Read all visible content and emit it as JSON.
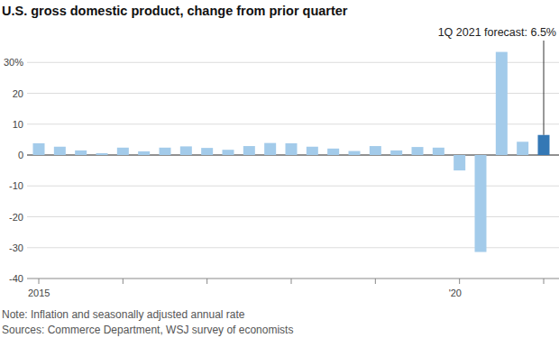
{
  "chart_data": {
    "type": "bar",
    "title": "U.S. gross domestic product, change from prior quarter",
    "annotation": "1Q 2021 forecast: 6.5%",
    "notes": [
      "Note: Inflation and seasonally adjusted annual rate",
      "Sources: Commerce Department, WSJ survey of economists"
    ],
    "categories": [
      "2015",
      null,
      null,
      null,
      null,
      null,
      null,
      null,
      null,
      null,
      null,
      null,
      null,
      null,
      null,
      null,
      null,
      null,
      null,
      null,
      "'20",
      null,
      null,
      null,
      null
    ],
    "values": [
      3.8,
      2.7,
      1.5,
      0.6,
      2.4,
      1.2,
      2.4,
      2.8,
      2.3,
      1.7,
      2.9,
      3.9,
      3.8,
      2.7,
      2.1,
      1.3,
      2.9,
      1.5,
      2.6,
      2.4,
      -5.0,
      -31.4,
      33.4,
      4.3,
      6.5
    ],
    "colors": [
      "#a3cbea",
      "#a3cbea",
      "#a3cbea",
      "#a3cbea",
      "#a3cbea",
      "#a3cbea",
      "#a3cbea",
      "#a3cbea",
      "#a3cbea",
      "#a3cbea",
      "#a3cbea",
      "#a3cbea",
      "#a3cbea",
      "#a3cbea",
      "#a3cbea",
      "#a3cbea",
      "#a3cbea",
      "#a3cbea",
      "#a3cbea",
      "#a3cbea",
      "#a3cbea",
      "#a3cbea",
      "#a3cbea",
      "#a3cbea",
      "#3478b5"
    ],
    "ylim": [
      -40,
      40
    ],
    "yticks": [
      -40,
      -30,
      -20,
      -10,
      0,
      10,
      20,
      {
        "value": 30,
        "label": "30%"
      }
    ],
    "grid": true
  }
}
